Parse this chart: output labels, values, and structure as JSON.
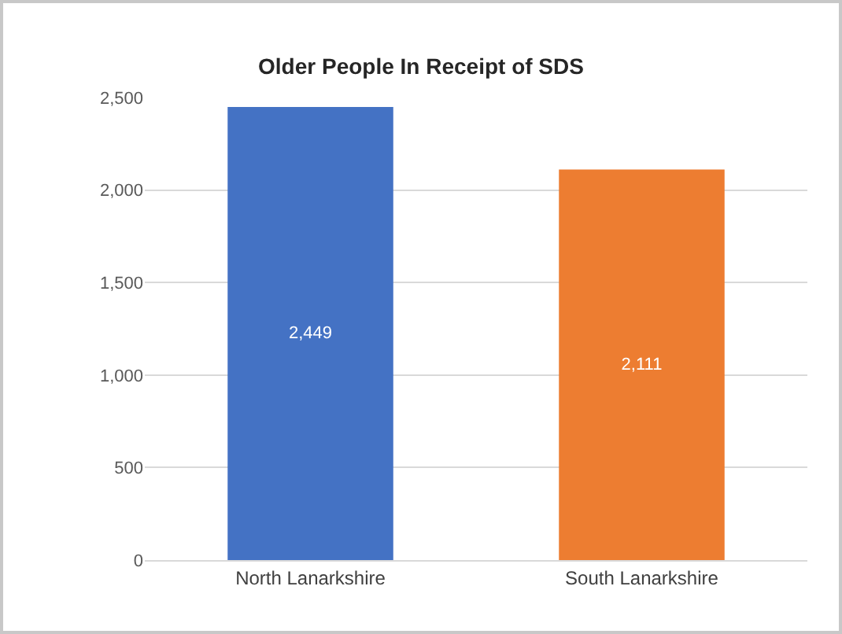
{
  "chart_data": {
    "type": "bar",
    "title": "Older People In Receipt of SDS",
    "categories": [
      "North Lanarkshire",
      "South Lanarkshire"
    ],
    "values": [
      2449,
      2111
    ],
    "colors": [
      "#4472c4",
      "#ed7d31"
    ],
    "value_labels": [
      "2,449",
      "2,111"
    ],
    "ylim": [
      0,
      2500
    ],
    "yticks": [
      0,
      500,
      {
        "value": 1000,
        "label": "1,000"
      },
      {
        "value": 1500,
        "label": "1,500"
      },
      {
        "value": 2000,
        "label": "2,000"
      },
      {
        "value": 2500,
        "label": "2,500"
      }
    ],
    "grid": "y"
  }
}
